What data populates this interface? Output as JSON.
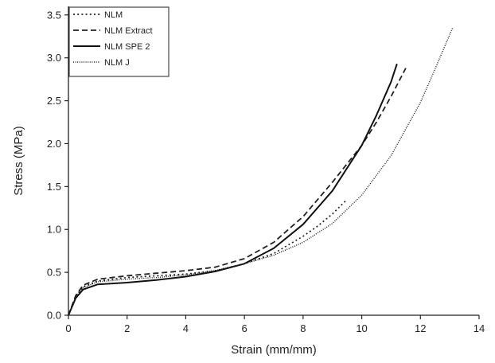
{
  "chart_data": {
    "type": "line",
    "xlabel": "Strain (mm/mm)",
    "ylabel": "Stress (MPa)",
    "xlim": [
      0,
      14
    ],
    "ylim": [
      0,
      3.6
    ],
    "x_ticks": [
      "0",
      "2",
      "4",
      "6",
      "8",
      "10",
      "12",
      "14"
    ],
    "y_ticks": [
      "0.0",
      "0.5",
      "1.0",
      "1.5",
      "2.0",
      "2.5",
      "3.0",
      "3.5"
    ],
    "grid": false,
    "legend_position": "top-left",
    "series": [
      {
        "name": "NLM",
        "style": "dotted",
        "color": "#222222",
        "x": [
          0,
          0.25,
          0.5,
          1,
          2,
          3,
          4,
          5,
          6,
          7,
          8,
          8.5,
          9,
          9.5
        ],
        "y": [
          0,
          0.22,
          0.33,
          0.4,
          0.44,
          0.46,
          0.48,
          0.52,
          0.6,
          0.72,
          0.92,
          1.04,
          1.18,
          1.35
        ]
      },
      {
        "name": "NLM Extract",
        "style": "dashed",
        "color": "#222222",
        "x": [
          0,
          0.25,
          0.5,
          1,
          2,
          3,
          4,
          5,
          6,
          7,
          8,
          9,
          10,
          10.5,
          11,
          11.5
        ],
        "y": [
          0,
          0.23,
          0.35,
          0.42,
          0.46,
          0.49,
          0.52,
          0.56,
          0.66,
          0.85,
          1.15,
          1.55,
          1.98,
          2.25,
          2.55,
          2.88
        ]
      },
      {
        "name": "NLM SPE 2",
        "style": "solid",
        "color": "#111111",
        "x": [
          0,
          0.25,
          0.5,
          1,
          2,
          3,
          4,
          5,
          6,
          7,
          8,
          9,
          10,
          10.5,
          11,
          11.2
        ],
        "y": [
          0,
          0.2,
          0.3,
          0.36,
          0.38,
          0.41,
          0.45,
          0.51,
          0.6,
          0.78,
          1.06,
          1.45,
          1.98,
          2.33,
          2.72,
          2.93
        ]
      },
      {
        "name": "NLM J",
        "style": "fine-dotted",
        "color": "#222222",
        "x": [
          0,
          0.25,
          0.5,
          1,
          2,
          3,
          4,
          5,
          6,
          7,
          8,
          9,
          10,
          11,
          12,
          12.5,
          13.1
        ],
        "y": [
          0,
          0.21,
          0.32,
          0.39,
          0.42,
          0.44,
          0.47,
          0.52,
          0.6,
          0.7,
          0.85,
          1.07,
          1.4,
          1.86,
          2.48,
          2.87,
          3.35
        ]
      }
    ]
  }
}
